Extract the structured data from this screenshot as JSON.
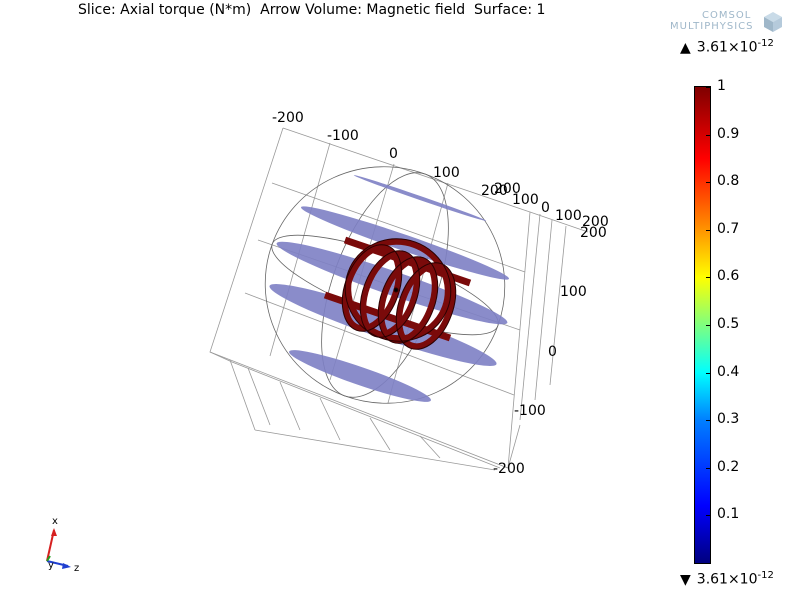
{
  "title": "Slice: Axial torque (N*m)  Arrow Volume: Magnetic field  Surface: 1",
  "logo": {
    "line1": "COMSOL",
    "line2": "MULTIPHYSICS"
  },
  "range": {
    "max_mantissa": "3.61",
    "max_base": "×10",
    "max_exponent": "-12",
    "min_mantissa": "3.61",
    "min_base": "×10",
    "min_exponent": "-12"
  },
  "colorbar": {
    "ticks": [
      "1",
      "0.9",
      "0.8",
      "0.7",
      "0.6",
      "0.5",
      "0.4",
      "0.3",
      "0.2",
      "0.1"
    ],
    "tick_values": [
      1,
      0.9,
      0.8,
      0.7,
      0.6,
      0.5,
      0.4,
      0.3,
      0.2,
      0.1
    ],
    "min": 0,
    "max": 1,
    "colormap": [
      "#00007f",
      "#0000ff",
      "#007fff",
      "#00ffff",
      "#7fff7f",
      "#ffff00",
      "#ff7f00",
      "#ff0000",
      "#7f0000"
    ]
  },
  "axes": {
    "top_ticks": [
      "-200",
      "-100",
      "0",
      "100",
      "200"
    ],
    "right_upper_ticks": [
      "200",
      "100",
      "0",
      "100",
      "200"
    ],
    "right_lower_ticks": [
      "200",
      "100",
      "0",
      "-100",
      "-200"
    ]
  },
  "triad": {
    "x": "x",
    "y": "y",
    "z": "z"
  },
  "colors": {
    "coil": "#7a0a0a",
    "coil_edge": "#2a0000",
    "slice": "#7d80c4",
    "grid": "#888888",
    "triad_x": "#d62020",
    "triad_y": "#20a020",
    "triad_z": "#2040d0"
  }
}
